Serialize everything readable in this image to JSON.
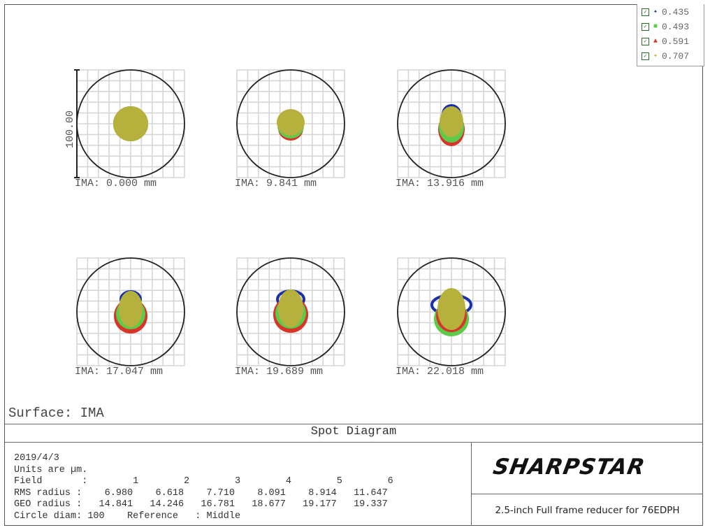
{
  "chart_data": {
    "type": "scatter",
    "title": "Spot Diagram",
    "surface_label": "Surface: IMA",
    "scale_bar_label": "100.00",
    "fields": [
      {
        "label": "IMA: 0.000 mm",
        "rms_radius": 6.98,
        "geo_radius": 14.841
      },
      {
        "label": "IMA: 9.841 mm",
        "rms_radius": 6.618,
        "geo_radius": 14.246
      },
      {
        "label": "IMA: 13.916 mm",
        "rms_radius": 7.71,
        "geo_radius": 16.781
      },
      {
        "label": "IMA: 17.047 mm",
        "rms_radius": 8.091,
        "geo_radius": 18.677
      },
      {
        "label": "IMA: 19.689 mm",
        "rms_radius": 8.914,
        "geo_radius": 19.177
      },
      {
        "label": "IMA: 22.018 mm",
        "rms_radius": 11.647,
        "geo_radius": 19.337
      }
    ],
    "legend": [
      {
        "label": "0.435",
        "symbol": "✦",
        "color": "#1a2fa8"
      },
      {
        "label": "0.493",
        "symbol": "■",
        "color": "#5ccb4a"
      },
      {
        "label": "0.591",
        "symbol": "▲",
        "color": "#d8342a"
      },
      {
        "label": "0.707",
        "symbol": "✦",
        "color": "#b5b13c"
      }
    ],
    "circle_diam": 100,
    "units": "µm"
  },
  "info": {
    "date": "2019/4/3",
    "units_line": "Units are µm.",
    "field_line": "Field       :        1        2        3        4        5        6",
    "rms_line": "RMS radius :    6.980    6.618    7.710    8.091    8.914   11.647",
    "geo_line": "GEO radius :   14.841   14.246   16.781   18.677   19.177   19.337",
    "circle_line": "Circle diam: 100    Reference   : Middle"
  },
  "brand": {
    "logo": "SHARPSTAR",
    "subtitle": "2.5-inch Full frame reducer for 76EDPH"
  }
}
